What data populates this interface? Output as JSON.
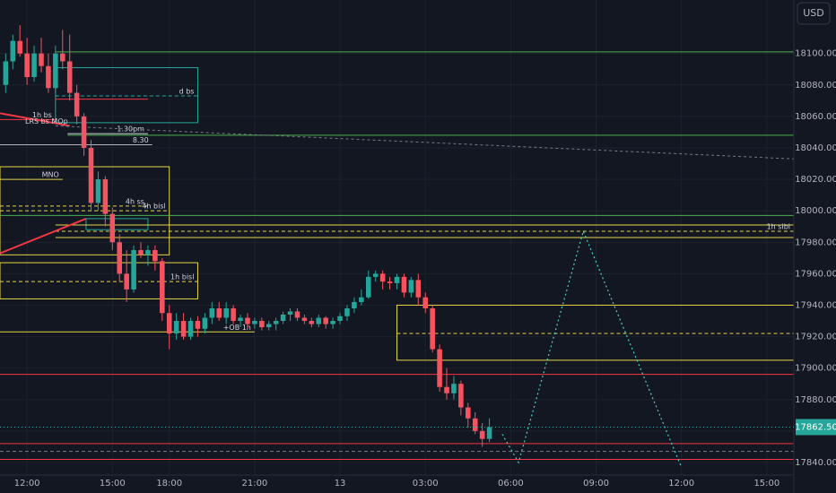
{
  "chart_data": {
    "type": "candlestick",
    "currency": "USD",
    "price_label": "17862.50",
    "up_color": "#26a69a",
    "down_color": "#f7525f",
    "xlim": [
      -3.8,
      107.8
    ],
    "ylim": [
      17832,
      18134
    ],
    "xticks": [
      {
        "value": 0,
        "label": "12:00"
      },
      {
        "value": 12,
        "label": "15:00"
      },
      {
        "value": 20,
        "label": "18:00"
      },
      {
        "value": 32,
        "label": "21:00"
      },
      {
        "value": 44,
        "label": "13"
      },
      {
        "value": 56,
        "label": "03:00"
      },
      {
        "value": 68,
        "label": "06:00"
      },
      {
        "value": 80,
        "label": "09:00"
      },
      {
        "value": 92,
        "label": "12:00"
      },
      {
        "value": 104,
        "label": "15:00"
      }
    ],
    "yticks": [
      {
        "value": 17840,
        "label": "17840.00"
      },
      {
        "value": 17860,
        "label": "17860.00"
      },
      {
        "value": 17880,
        "label": "17880.00"
      },
      {
        "value": 17900,
        "label": "17900.00"
      },
      {
        "value": 17920,
        "label": "17920.00"
      },
      {
        "value": 17940,
        "label": "17940.00"
      },
      {
        "value": 17960,
        "label": "17960.00"
      },
      {
        "value": 17980,
        "label": "17980.00"
      },
      {
        "value": 18000,
        "label": "18000.00"
      },
      {
        "value": 18020,
        "label": "18020.00"
      },
      {
        "value": 18040,
        "label": "18040.00"
      },
      {
        "value": 18060,
        "label": "18060.00"
      },
      {
        "value": 18080,
        "label": "18080.00"
      },
      {
        "value": 18100,
        "label": "18100.00"
      }
    ],
    "grid": true,
    "x": [
      -3,
      -2,
      -1,
      0,
      1,
      2,
      3,
      4,
      5,
      6,
      7,
      8,
      9,
      10,
      11,
      12,
      13,
      14,
      15,
      16,
      17,
      18,
      19,
      20,
      21,
      22,
      23,
      24,
      25,
      26,
      27,
      28,
      29,
      30,
      31,
      32,
      33,
      34,
      35,
      36,
      37,
      38,
      39,
      40,
      41,
      42,
      43,
      44,
      45,
      46,
      47,
      48,
      49,
      50,
      51,
      52,
      53,
      54,
      55,
      56,
      57,
      58,
      59,
      60,
      61,
      62,
      63,
      64,
      65
    ],
    "open": [
      18080,
      18095,
      18108,
      18100,
      18085,
      18100,
      18092,
      18078,
      18100,
      18095,
      18075,
      18060,
      18040,
      18005,
      18020,
      17998,
      17980,
      17960,
      17950,
      17975,
      17972,
      17975,
      17968,
      17935,
      17922,
      17930,
      17920,
      17930,
      17925,
      17932,
      17938,
      17932,
      17938,
      17930,
      17932,
      17928,
      17930,
      17926,
      17928,
      17930,
      17934,
      17936,
      17932,
      17930,
      17928,
      17932,
      17928,
      17930,
      17933,
      17938,
      17942,
      17945,
      17958,
      17960,
      17955,
      17954,
      17958,
      17948,
      17956,
      17945,
      17938,
      17912,
      17888,
      17884,
      17890,
      17875,
      17868,
      17860,
      17855
    ],
    "high": [
      18100,
      18112,
      18118,
      18110,
      18105,
      18110,
      18100,
      18105,
      18115,
      18112,
      18080,
      18062,
      18045,
      18025,
      18022,
      18002,
      17985,
      17975,
      17978,
      17980,
      17978,
      17978,
      17970,
      17940,
      17935,
      17935,
      17932,
      17933,
      17935,
      17942,
      17942,
      17942,
      17940,
      17934,
      17935,
      17932,
      17932,
      17930,
      17932,
      17936,
      17938,
      17938,
      17934,
      17932,
      17934,
      17933,
      17932,
      17935,
      17940,
      17945,
      17950,
      17962,
      17962,
      17962,
      17958,
      17960,
      17960,
      17958,
      17960,
      17948,
      17940,
      17915,
      17900,
      17895,
      17892,
      17878,
      17872,
      17865,
      17868
    ],
    "low": [
      18075,
      18090,
      18098,
      18080,
      18082,
      18088,
      18075,
      18075,
      18090,
      18070,
      18055,
      18035,
      18000,
      18000,
      17990,
      17975,
      17955,
      17942,
      17948,
      17970,
      17965,
      17962,
      17930,
      17912,
      17918,
      17918,
      17918,
      17920,
      17922,
      17928,
      17930,
      17928,
      17928,
      17926,
      17925,
      17925,
      17924,
      17924,
      17924,
      17928,
      17930,
      17930,
      17928,
      17926,
      17926,
      17925,
      17925,
      17928,
      17930,
      17935,
      17940,
      17944,
      17955,
      17950,
      17950,
      17950,
      17945,
      17945,
      17940,
      17935,
      17910,
      17885,
      17880,
      17880,
      17870,
      17862,
      17858,
      17850,
      17853
    ],
    "close": [
      18095,
      18108,
      18100,
      18085,
      18100,
      18092,
      18078,
      18100,
      18095,
      18075,
      18060,
      18040,
      18005,
      18020,
      17998,
      17980,
      17960,
      17950,
      17975,
      17972,
      17975,
      17968,
      17935,
      17922,
      17930,
      17920,
      17930,
      17925,
      17932,
      17938,
      17932,
      17938,
      17930,
      17932,
      17928,
      17930,
      17926,
      17928,
      17930,
      17934,
      17936,
      17932,
      17930,
      17928,
      17932,
      17928,
      17930,
      17933,
      17938,
      17942,
      17945,
      17958,
      17960,
      17955,
      17954,
      17958,
      17948,
      17956,
      17945,
      17938,
      17912,
      17888,
      17884,
      17890,
      17875,
      17868,
      17860,
      17855,
      17862.5
    ],
    "levels": [
      {
        "price": 18101,
        "color": "#4caf50",
        "from": 4
      },
      {
        "price": 18048,
        "color": "#4caf50",
        "from": 5.7
      },
      {
        "price": 17997,
        "color": "#4caf50",
        "from": -3.8
      },
      {
        "price": 17991,
        "color": "#e6d44a",
        "from": 4
      },
      {
        "price": 17987,
        "color": "#e6d44a",
        "from": 4,
        "dash": true,
        "label": "1h sibl"
      },
      {
        "price": 17983,
        "color": "#e6d44a",
        "from": 4
      },
      {
        "price": 18073,
        "color": "#26a69a",
        "from": 4,
        "to": 24,
        "dash": true,
        "label": "d bs"
      },
      {
        "price": 18071,
        "color": "#f23645",
        "from": 4,
        "to": 17
      },
      {
        "price": 18058,
        "color": "#f23645",
        "from": -3.8,
        "to": 4,
        "label": "1h bs"
      },
      {
        "price": 18049,
        "color": "#d1d4dc",
        "from": 5.7,
        "to": 17,
        "label": "1.30pm"
      },
      {
        "price": 18042,
        "color": "#b2b5be",
        "from": -3.8,
        "to": 17.6,
        "label": "8.30"
      },
      {
        "price": 18020,
        "color": "#e6d44a",
        "from": -3.8,
        "to": 5,
        "label": "MNO"
      },
      {
        "price": 18003,
        "color": "#e6d44a",
        "from": -3.8,
        "to": 17,
        "dash": true,
        "label": "4h ss"
      },
      {
        "price": 18000,
        "color": "#e6d44a",
        "from": -3.8,
        "to": 20,
        "dash": true,
        "label": "4h bisl"
      },
      {
        "price": 17955,
        "color": "#e6d44a",
        "from": -3.8,
        "to": 24,
        "dash": true,
        "label": "1h bisl"
      },
      {
        "price": 17923,
        "color": "#e6d44a",
        "from": -3.8,
        "to": 32,
        "label": "+OB 1h"
      },
      {
        "price": 17922,
        "color": "#e6d44a",
        "from": 52,
        "dash": true
      },
      {
        "price": 17896,
        "color": "#f23645",
        "from": -3.8
      },
      {
        "price": 17852,
        "color": "#f23645",
        "from": -3.8
      },
      {
        "price": 17847,
        "color": "#787b86",
        "from": -3.8,
        "dash": true
      },
      {
        "price": 17842,
        "color": "#f23645",
        "from": -3.8
      }
    ],
    "trendlines": [
      {
        "x": [
          -3.8,
          6
        ],
        "y": [
          18062,
          18054
        ],
        "color": "#f23645",
        "label": "LRS bs MOp"
      },
      {
        "x": [
          -3.8,
          8.3
        ],
        "y": [
          17973,
          17995
        ],
        "color": "#f23645"
      },
      {
        "x": [
          4,
          107.8
        ],
        "y": [
          18054,
          18033
        ],
        "color": "#787b86",
        "dash": true
      }
    ],
    "boxes": [
      {
        "x": [
          4,
          24
        ],
        "y": [
          18056,
          18091
        ],
        "color": "#26a69a"
      },
      {
        "x": [
          -3.8,
          20
        ],
        "y": [
          17972,
          18028
        ],
        "color": "#e6d44a"
      },
      {
        "x": [
          8.3,
          17
        ],
        "y": [
          17988,
          17995
        ],
        "color": "#26a69a"
      },
      {
        "x": [
          -3.8,
          24
        ],
        "y": [
          17944,
          17967
        ],
        "color": "#e6d44a"
      },
      {
        "x": [
          52,
          107.8
        ],
        "y": [
          17905,
          17940
        ],
        "color": "#e6d44a"
      }
    ],
    "projection": {
      "x": [
        66.8,
        69.1,
        78.2,
        92
      ],
      "y": [
        17858,
        17840,
        17987,
        17837
      ],
      "color": "#4dd0c4"
    }
  }
}
